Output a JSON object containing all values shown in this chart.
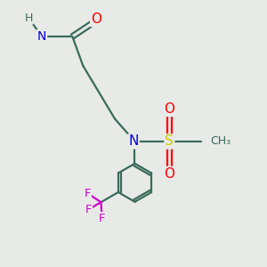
{
  "bg_color": "#e8eae8",
  "atom_colors": {
    "C": "#3a6b5a",
    "N": "#0000e0",
    "O": "#ff0000",
    "S": "#cccc00",
    "F": "#cc00cc",
    "H": "#3a6b5a"
  },
  "bond_color": "#3a6b5a",
  "bond_lw": 1.6,
  "ring_r": 0.72,
  "xlim": [
    0,
    10
  ],
  "ylim": [
    0,
    10
  ]
}
